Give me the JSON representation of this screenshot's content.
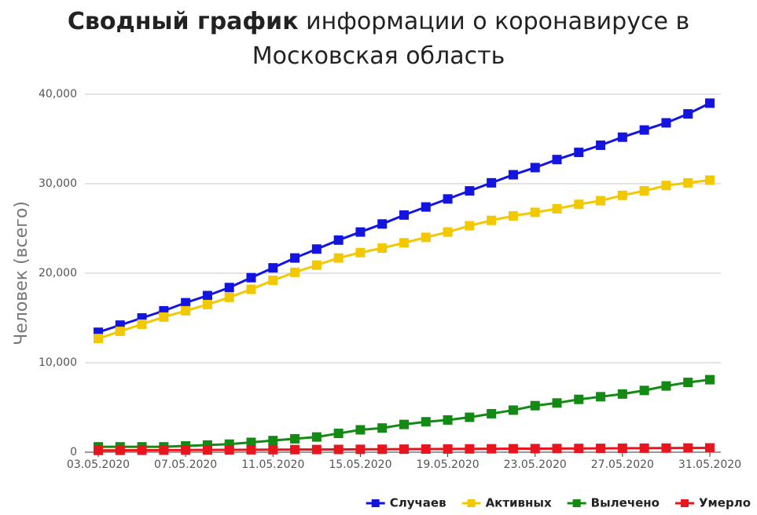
{
  "chart_data": {
    "type": "line",
    "title_bold": "Сводный график",
    "title": "информации о коронавирусе в Московская область",
    "y_label": "Человек (всего)",
    "categories": [
      "03.05.2020",
      null,
      null,
      null,
      "07.05.2020",
      null,
      null,
      null,
      "11.05.2020",
      null,
      null,
      null,
      "15.05.2020",
      null,
      null,
      null,
      "19.05.2020",
      null,
      null,
      null,
      "23.05.2020",
      null,
      null,
      null,
      "27.05.2020",
      null,
      null,
      null,
      "31.05.2020"
    ],
    "series": [
      {
        "name": "Случаев",
        "color": "#1414e0",
        "values": [
          13400,
          14200,
          15000,
          15800,
          16700,
          17500,
          18400,
          19500,
          20600,
          21700,
          22700,
          23700,
          24600,
          25500,
          26500,
          27400,
          28300,
          29200,
          30100,
          31000,
          31800,
          32700,
          33500,
          34300,
          35200,
          36000,
          36800,
          37800,
          39000
        ]
      },
      {
        "name": "Активных",
        "color": "#f2c800",
        "values": [
          12700,
          13500,
          14300,
          15100,
          15800,
          16500,
          17300,
          18200,
          19200,
          20100,
          20900,
          21700,
          22300,
          22800,
          23400,
          24000,
          24600,
          25300,
          25900,
          26400,
          26800,
          27200,
          27700,
          28100,
          28700,
          29200,
          29800,
          30100,
          30400
        ]
      },
      {
        "name": "Вылечено",
        "color": "#138a13",
        "values": [
          600,
          600,
          600,
          600,
          700,
          800,
          900,
          1100,
          1300,
          1500,
          1700,
          2100,
          2500,
          2700,
          3100,
          3400,
          3600,
          3900,
          4300,
          4700,
          5200,
          5500,
          5900,
          6200,
          6500,
          6900,
          7400,
          7800,
          8100
        ]
      },
      {
        "name": "Умерло",
        "color": "#e8141e",
        "values": [
          200,
          210,
          220,
          230,
          240,
          250,
          260,
          270,
          280,
          290,
          300,
          310,
          320,
          330,
          340,
          350,
          360,
          370,
          380,
          390,
          400,
          410,
          420,
          430,
          440,
          450,
          460,
          470,
          480
        ]
      }
    ],
    "ylim": [
      0,
      40000
    ],
    "yticks": [
      0,
      {
        "value": 10000,
        "label": "10,000"
      },
      {
        "value": 20000,
        "label": "20,000"
      },
      {
        "value": 30000,
        "label": "30,000"
      },
      {
        "value": 40000,
        "label": "40,000"
      }
    ],
    "grid": true,
    "legend": "bottom-right"
  }
}
